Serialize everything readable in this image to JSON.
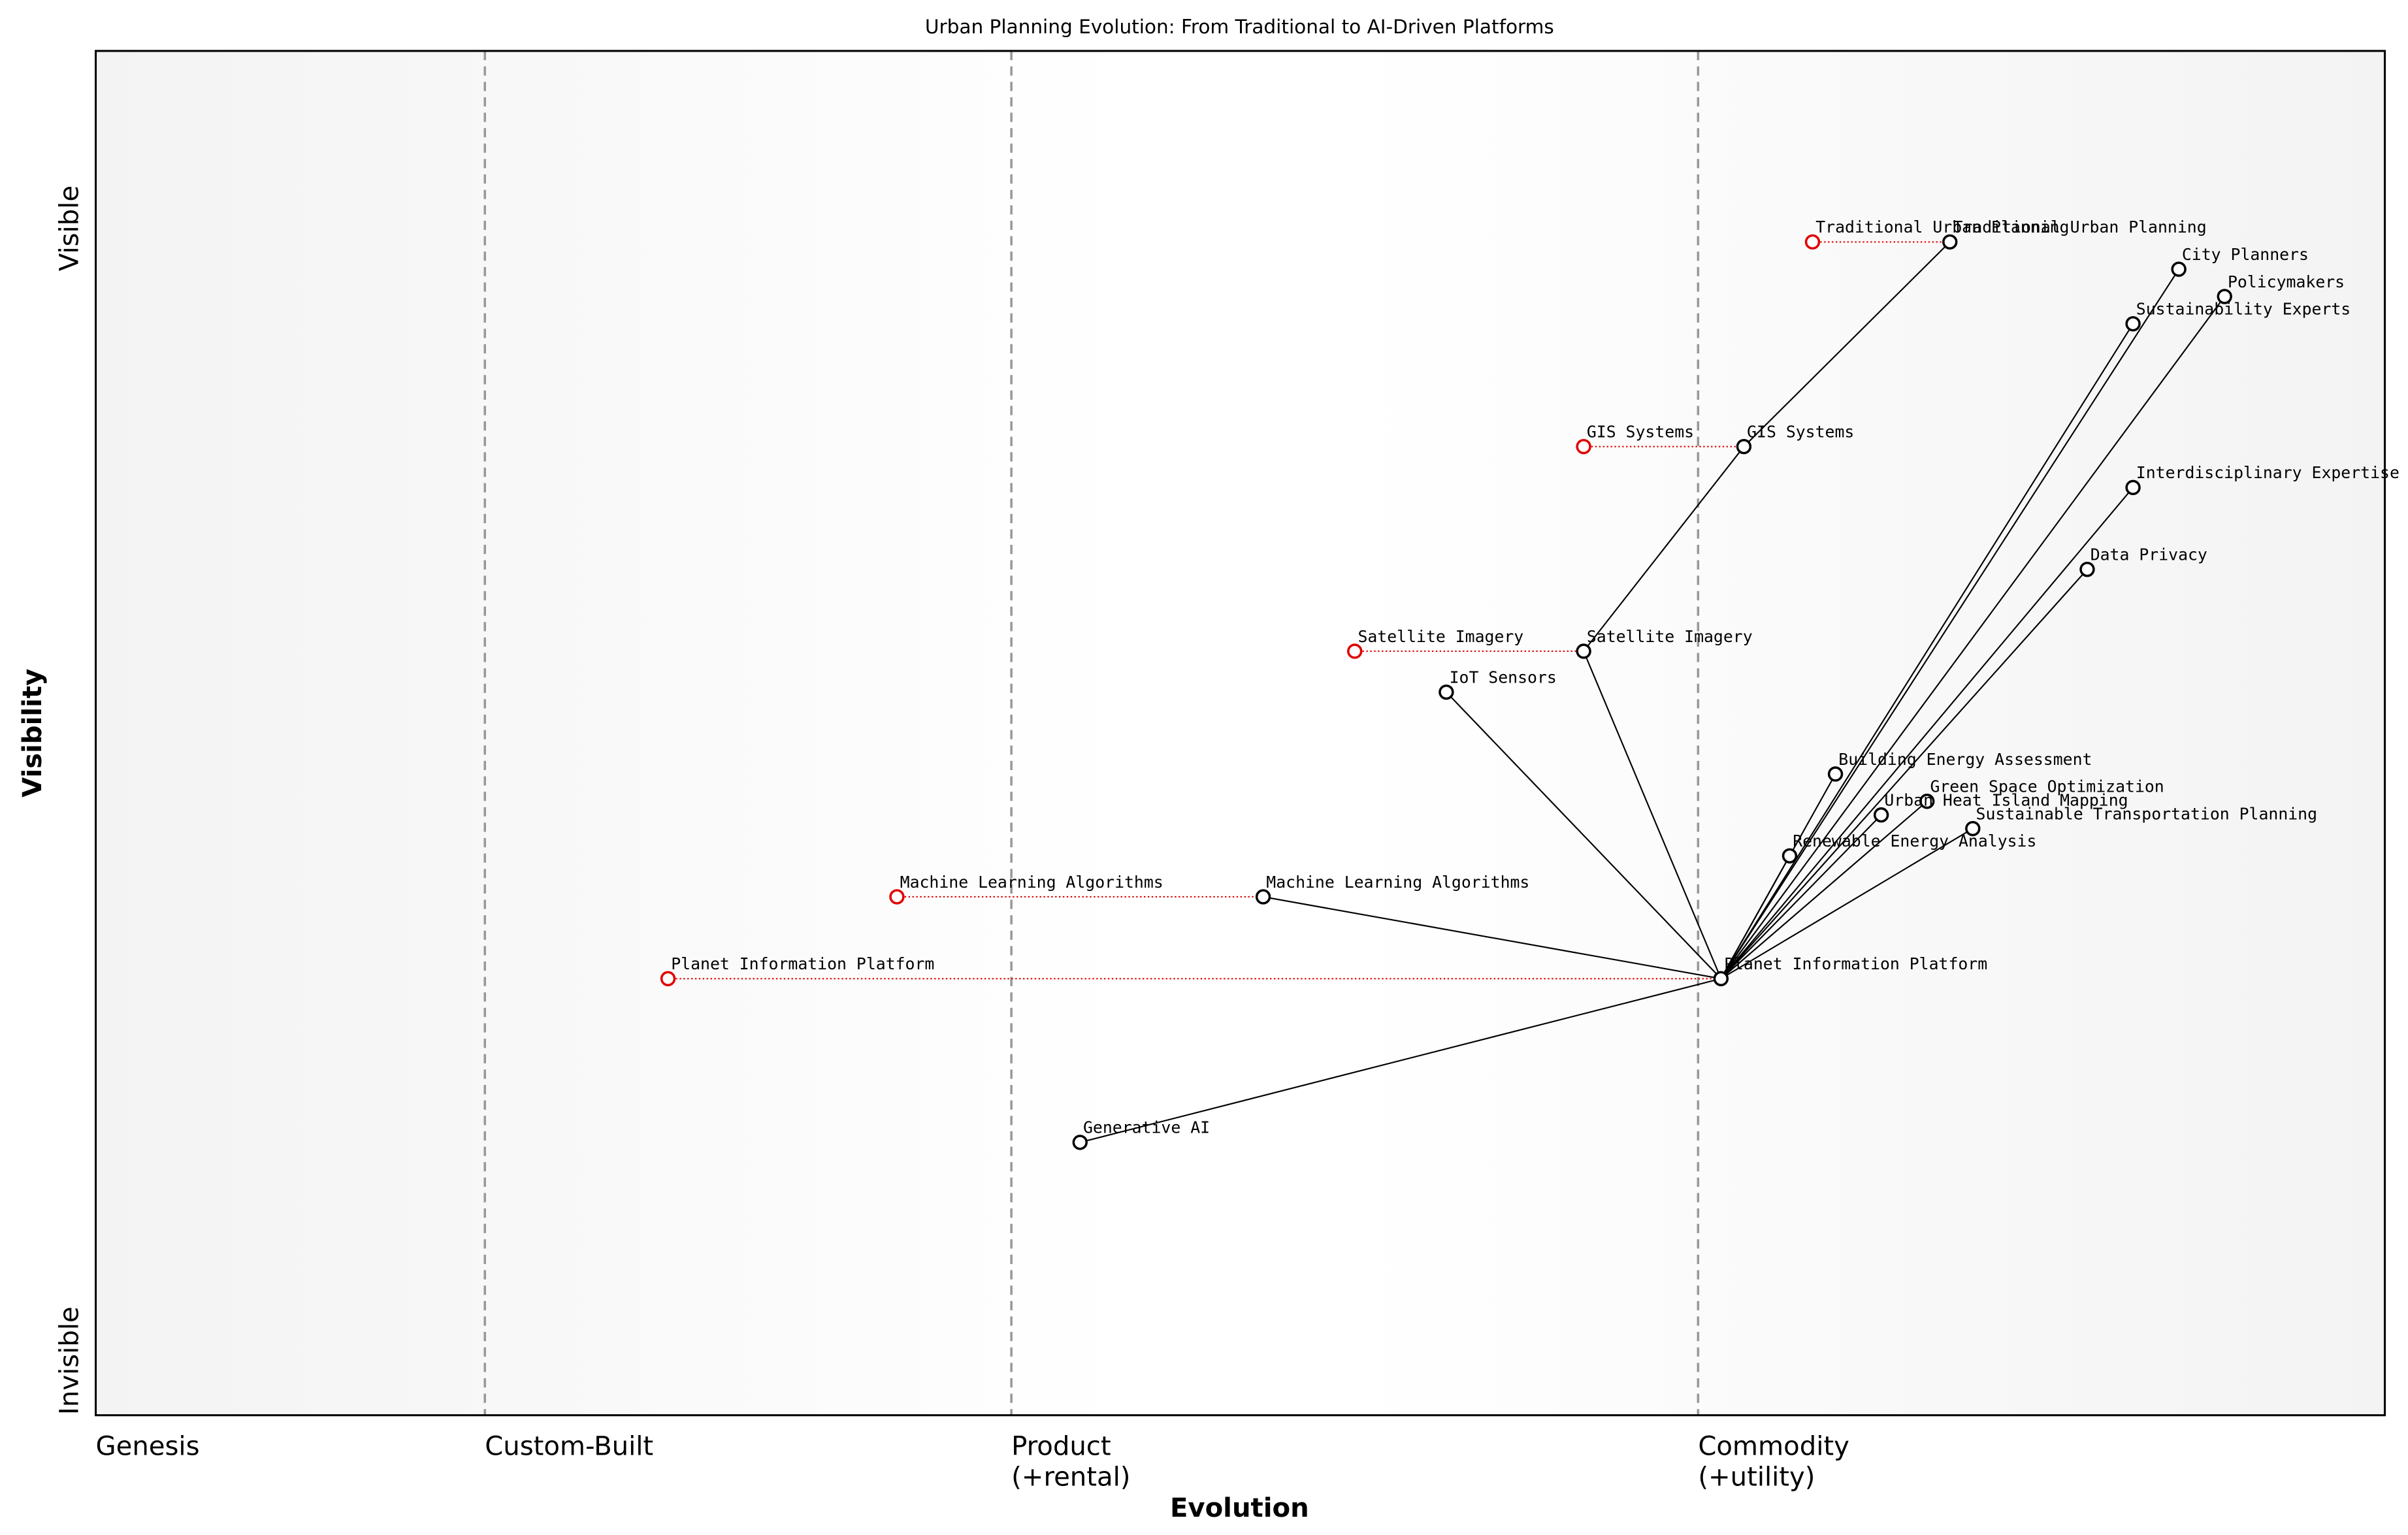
{
  "chart_data": {
    "type": "wardley",
    "title": "Urban Planning Evolution: From Traditional to AI-Driven Platforms",
    "x_label": "Evolution",
    "y_label": "Visibility",
    "xlim": [
      0,
      1
    ],
    "ylim": [
      0,
      1
    ],
    "xticks": [
      {
        "value": 0,
        "label": [
          "Genesis"
        ]
      },
      {
        "value": 0.17,
        "label": [
          "Custom-Built"
        ]
      },
      {
        "value": 0.4,
        "label": [
          "Product",
          "(+rental)"
        ]
      },
      {
        "value": 0.7,
        "label": [
          "Commodity",
          "(+utility)"
        ]
      }
    ],
    "yticks": [
      {
        "value": 0.87,
        "label": "Visible"
      },
      {
        "value": 0.04,
        "label": "Invisible"
      }
    ],
    "node_color": "#000000",
    "previous_color": "#e00000",
    "nodes": [
      {
        "name": "Traditional Urban Planning",
        "evolution": 0.81,
        "visibility": 0.86,
        "previous_evolution": 0.75
      },
      {
        "name": "City Planners",
        "evolution": 0.91,
        "visibility": 0.84
      },
      {
        "name": "Policymakers",
        "evolution": 0.93,
        "visibility": 0.82
      },
      {
        "name": "Sustainability Experts",
        "evolution": 0.89,
        "visibility": 0.8
      },
      {
        "name": "GIS Systems",
        "evolution": 0.72,
        "visibility": 0.71,
        "previous_evolution": 0.65
      },
      {
        "name": "Interdisciplinary Expertise",
        "evolution": 0.89,
        "visibility": 0.68
      },
      {
        "name": "Data Privacy",
        "evolution": 0.87,
        "visibility": 0.62
      },
      {
        "name": "Satellite Imagery",
        "evolution": 0.65,
        "visibility": 0.56,
        "previous_evolution": 0.55
      },
      {
        "name": "IoT Sensors",
        "evolution": 0.59,
        "visibility": 0.53
      },
      {
        "name": "Building Energy Assessment",
        "evolution": 0.76,
        "visibility": 0.47
      },
      {
        "name": "Green Space Optimization",
        "evolution": 0.8,
        "visibility": 0.45
      },
      {
        "name": "Urban Heat Island Mapping",
        "evolution": 0.78,
        "visibility": 0.44
      },
      {
        "name": "Sustainable Transportation Planning",
        "evolution": 0.82,
        "visibility": 0.43
      },
      {
        "name": "Renewable Energy Analysis",
        "evolution": 0.74,
        "visibility": 0.41
      },
      {
        "name": "Machine Learning Algorithms",
        "evolution": 0.51,
        "visibility": 0.38,
        "previous_evolution": 0.35
      },
      {
        "name": "Planet Information Platform",
        "evolution": 0.71,
        "visibility": 0.32,
        "previous_evolution": 0.25
      },
      {
        "name": "Generative AI",
        "evolution": 0.43,
        "visibility": 0.2
      }
    ],
    "links": [
      [
        "Traditional Urban Planning",
        "GIS Systems"
      ],
      [
        "GIS Systems",
        "Satellite Imagery"
      ],
      [
        "Satellite Imagery",
        "Planet Information Platform"
      ],
      [
        "IoT Sensors",
        "Planet Information Platform"
      ],
      [
        "Machine Learning Algorithms",
        "Planet Information Platform"
      ],
      [
        "Generative AI",
        "Planet Information Platform"
      ],
      [
        "Planet Information Platform",
        "City Planners"
      ],
      [
        "Planet Information Platform",
        "Policymakers"
      ],
      [
        "Planet Information Platform",
        "Sustainability Experts"
      ],
      [
        "Planet Information Platform",
        "Interdisciplinary Expertise"
      ],
      [
        "Planet Information Platform",
        "Data Privacy"
      ],
      [
        "Planet Information Platform",
        "Building Energy Assessment"
      ],
      [
        "Planet Information Platform",
        "Green Space Optimization"
      ],
      [
        "Planet Information Platform",
        "Urban Heat Island Mapping"
      ],
      [
        "Planet Information Platform",
        "Sustainable Transportation Planning"
      ],
      [
        "Planet Information Platform",
        "Renewable Energy Analysis"
      ]
    ]
  }
}
